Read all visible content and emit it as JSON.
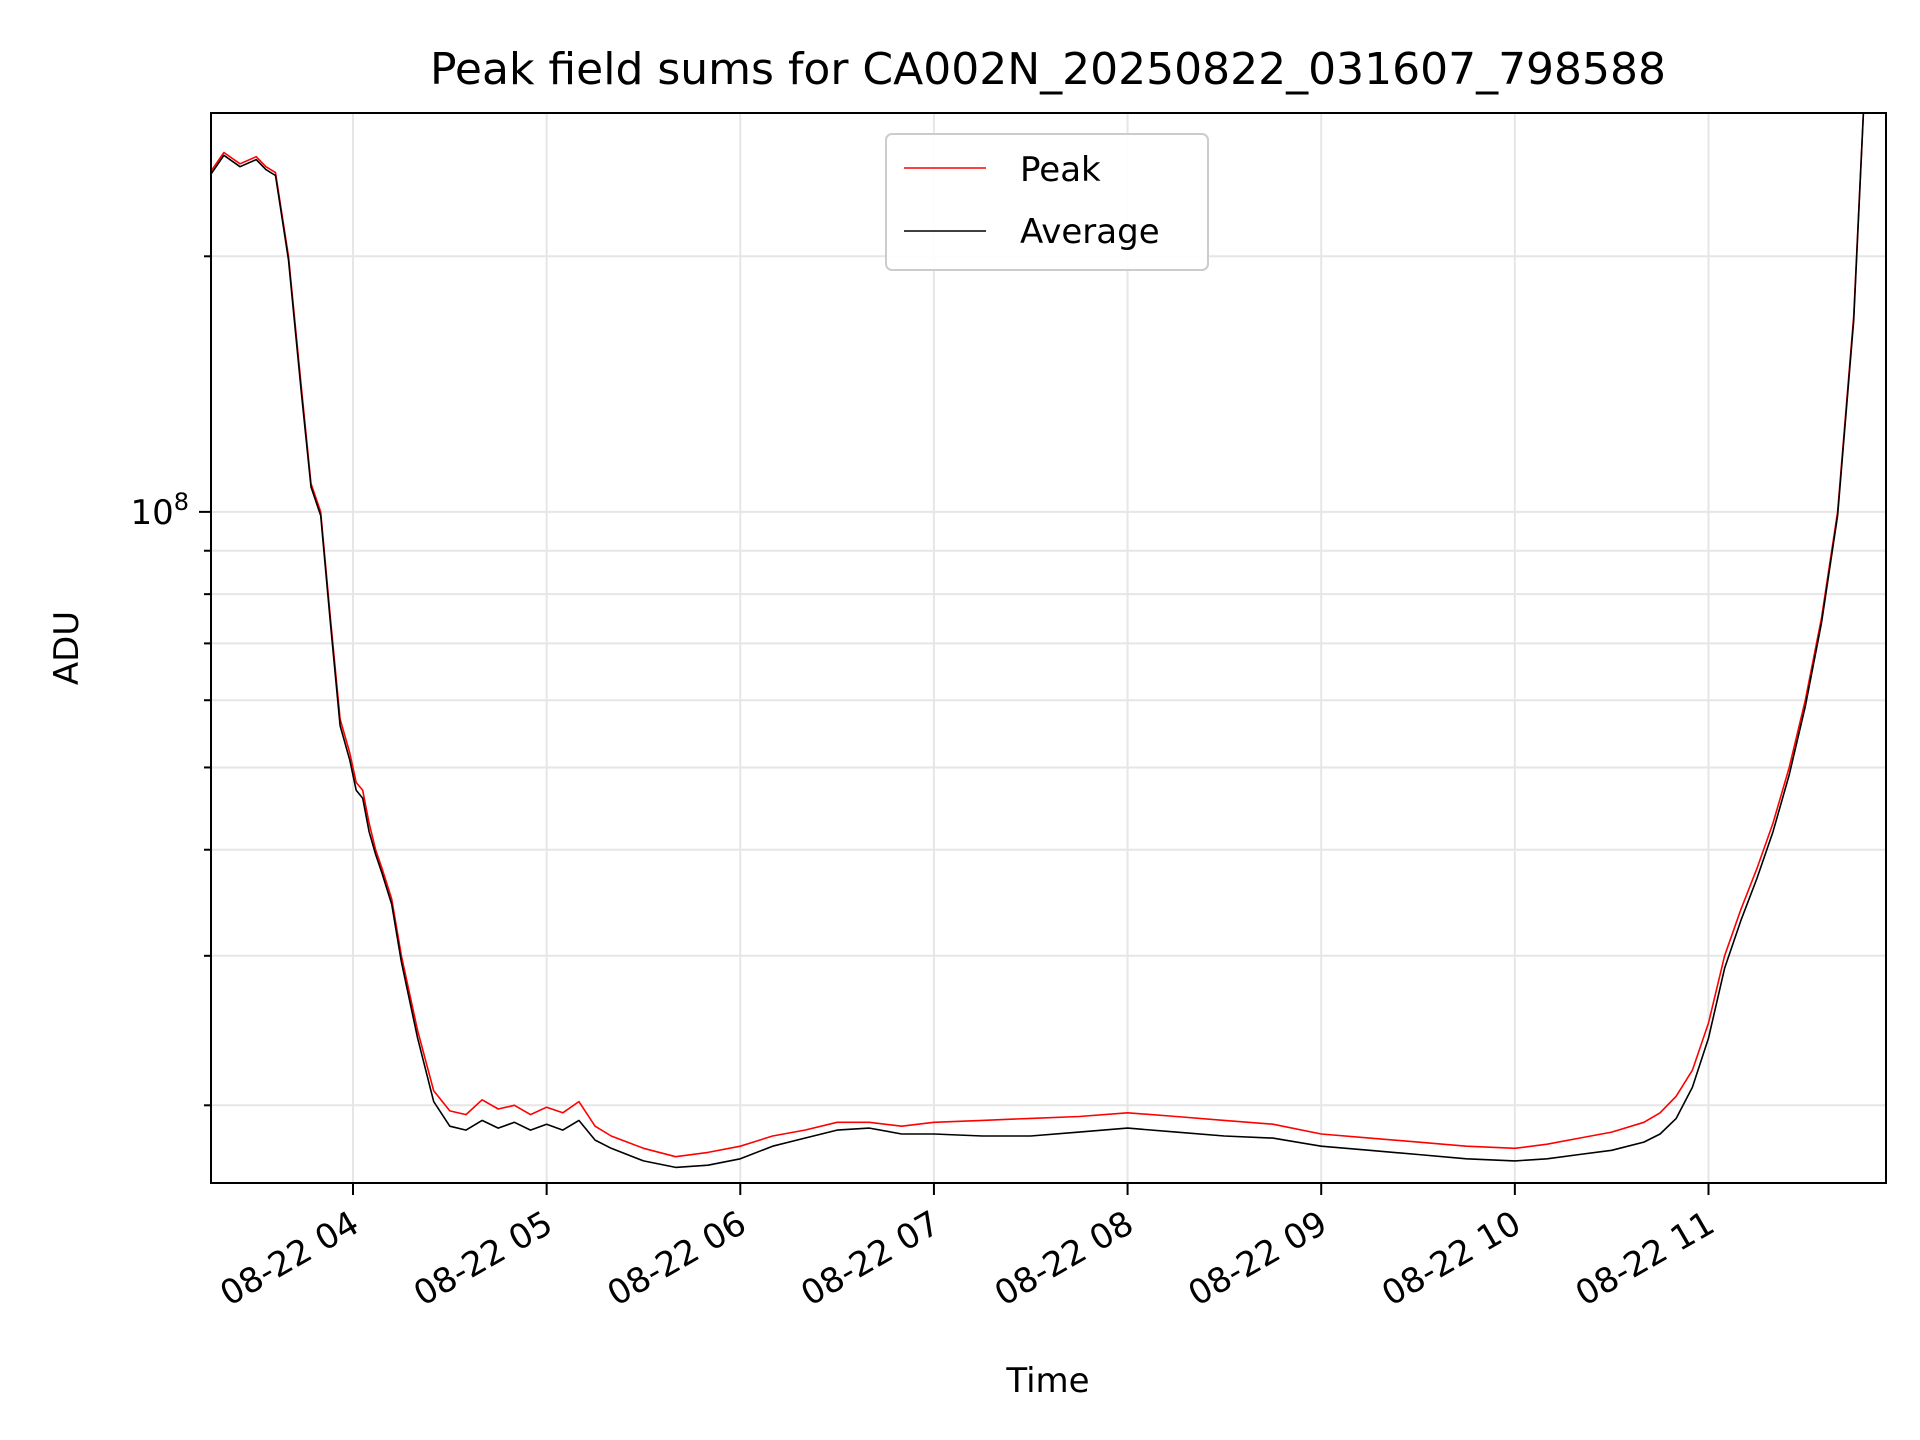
{
  "chart_data": {
    "type": "line",
    "title": "Peak field sums for CA002N_20250822_031607_798588",
    "xlabel": "Time",
    "ylabel": "ADU",
    "y_scale": "log",
    "x_range": [
      "2025-08-22 03:16",
      "2025-08-22 11:55"
    ],
    "y_range": [
      16200000,
      295000000
    ],
    "x_tick_labels": [
      "08-22 04",
      "08-22 05",
      "08-22 06",
      "08-22 07",
      "08-22 08",
      "08-22 09",
      "08-22 10",
      "08-22 11"
    ],
    "x_ticks": [
      "2025-08-22 04:00",
      "2025-08-22 05:00",
      "2025-08-22 06:00",
      "2025-08-22 07:00",
      "2025-08-22 08:00",
      "2025-08-22 09:00",
      "2025-08-22 10:00",
      "2025-08-22 11:00"
    ],
    "y_tick_label": {
      "base": "10",
      "exponent": "8"
    },
    "y_tick_value": 100000000,
    "y_minor_ticks": [
      20000000,
      30000000,
      40000000,
      50000000,
      60000000,
      70000000,
      80000000,
      90000000,
      200000000
    ],
    "grid": true,
    "legend_position": "top-center",
    "series": [
      {
        "name": "Peak",
        "color": "#ff0000",
        "x": [
          "2025-08-22 03:16",
          "2025-08-22 03:20",
          "2025-08-22 03:25",
          "2025-08-22 03:30",
          "2025-08-22 03:33",
          "2025-08-22 03:36",
          "2025-08-22 03:40",
          "2025-08-22 03:44",
          "2025-08-22 03:47",
          "2025-08-22 03:50",
          "2025-08-22 03:53",
          "2025-08-22 03:56",
          "2025-08-22 03:59",
          "2025-08-22 04:01",
          "2025-08-22 04:03",
          "2025-08-22 04:05",
          "2025-08-22 04:07",
          "2025-08-22 04:09",
          "2025-08-22 04:12",
          "2025-08-22 04:15",
          "2025-08-22 04:20",
          "2025-08-22 04:25",
          "2025-08-22 04:30",
          "2025-08-22 04:35",
          "2025-08-22 04:40",
          "2025-08-22 04:45",
          "2025-08-22 04:50",
          "2025-08-22 04:55",
          "2025-08-22 05:00",
          "2025-08-22 05:05",
          "2025-08-22 05:10",
          "2025-08-22 05:15",
          "2025-08-22 05:20",
          "2025-08-22 05:30",
          "2025-08-22 05:40",
          "2025-08-22 05:50",
          "2025-08-22 06:00",
          "2025-08-22 06:10",
          "2025-08-22 06:20",
          "2025-08-22 06:30",
          "2025-08-22 06:40",
          "2025-08-22 06:50",
          "2025-08-22 07:00",
          "2025-08-22 07:15",
          "2025-08-22 07:30",
          "2025-08-22 07:45",
          "2025-08-22 08:00",
          "2025-08-22 08:15",
          "2025-08-22 08:30",
          "2025-08-22 08:45",
          "2025-08-22 09:00",
          "2025-08-22 09:15",
          "2025-08-22 09:30",
          "2025-08-22 09:45",
          "2025-08-22 10:00",
          "2025-08-22 10:10",
          "2025-08-22 10:20",
          "2025-08-22 10:30",
          "2025-08-22 10:40",
          "2025-08-22 10:45",
          "2025-08-22 10:50",
          "2025-08-22 10:55",
          "2025-08-22 11:00",
          "2025-08-22 11:05",
          "2025-08-22 11:10",
          "2025-08-22 11:15",
          "2025-08-22 11:20",
          "2025-08-22 11:25",
          "2025-08-22 11:30",
          "2025-08-22 11:35",
          "2025-08-22 11:40",
          "2025-08-22 11:45",
          "2025-08-22 11:48"
        ],
        "values": [
          252000000,
          265000000,
          257000000,
          262000000,
          255000000,
          251000000,
          200000000,
          140000000,
          108000000,
          100000000,
          75000000,
          57000000,
          52000000,
          48000000,
          47000000,
          43000000,
          40000000,
          38000000,
          35000000,
          30000000,
          24500000,
          20800000,
          19700000,
          19500000,
          20300000,
          19800000,
          20000000,
          19500000,
          19900000,
          19600000,
          20200000,
          18900000,
          18400000,
          17800000,
          17400000,
          17600000,
          17900000,
          18400000,
          18700000,
          19100000,
          19100000,
          18900000,
          19100000,
          19200000,
          19300000,
          19400000,
          19600000,
          19400000,
          19200000,
          19000000,
          18500000,
          18300000,
          18100000,
          17900000,
          17800000,
          18000000,
          18300000,
          18600000,
          19100000,
          19600000,
          20500000,
          22000000,
          25000000,
          30000000,
          34000000,
          38000000,
          43000000,
          50000000,
          60000000,
          75000000,
          100000000,
          170000000,
          295000000
        ]
      },
      {
        "name": "Average",
        "color": "#000000",
        "x": [
          "2025-08-22 03:16",
          "2025-08-22 03:20",
          "2025-08-22 03:25",
          "2025-08-22 03:30",
          "2025-08-22 03:33",
          "2025-08-22 03:36",
          "2025-08-22 03:40",
          "2025-08-22 03:44",
          "2025-08-22 03:47",
          "2025-08-22 03:50",
          "2025-08-22 03:53",
          "2025-08-22 03:56",
          "2025-08-22 03:59",
          "2025-08-22 04:01",
          "2025-08-22 04:03",
          "2025-08-22 04:05",
          "2025-08-22 04:07",
          "2025-08-22 04:09",
          "2025-08-22 04:12",
          "2025-08-22 04:15",
          "2025-08-22 04:20",
          "2025-08-22 04:25",
          "2025-08-22 04:30",
          "2025-08-22 04:35",
          "2025-08-22 04:40",
          "2025-08-22 04:45",
          "2025-08-22 04:50",
          "2025-08-22 04:55",
          "2025-08-22 05:00",
          "2025-08-22 05:05",
          "2025-08-22 05:10",
          "2025-08-22 05:15",
          "2025-08-22 05:20",
          "2025-08-22 05:30",
          "2025-08-22 05:40",
          "2025-08-22 05:50",
          "2025-08-22 06:00",
          "2025-08-22 06:10",
          "2025-08-22 06:20",
          "2025-08-22 06:30",
          "2025-08-22 06:40",
          "2025-08-22 06:50",
          "2025-08-22 07:00",
          "2025-08-22 07:15",
          "2025-08-22 07:30",
          "2025-08-22 07:45",
          "2025-08-22 08:00",
          "2025-08-22 08:15",
          "2025-08-22 08:30",
          "2025-08-22 08:45",
          "2025-08-22 09:00",
          "2025-08-22 09:15",
          "2025-08-22 09:30",
          "2025-08-22 09:45",
          "2025-08-22 10:00",
          "2025-08-22 10:10",
          "2025-08-22 10:20",
          "2025-08-22 10:30",
          "2025-08-22 10:40",
          "2025-08-22 10:45",
          "2025-08-22 10:50",
          "2025-08-22 10:55",
          "2025-08-22 11:00",
          "2025-08-22 11:05",
          "2025-08-22 11:10",
          "2025-08-22 11:15",
          "2025-08-22 11:20",
          "2025-08-22 11:25",
          "2025-08-22 11:30",
          "2025-08-22 11:35",
          "2025-08-22 11:40",
          "2025-08-22 11:45",
          "2025-08-22 11:48"
        ],
        "values": [
          250000000,
          263000000,
          255000000,
          260000000,
          253000000,
          249000000,
          198000000,
          138000000,
          107000000,
          99000000,
          74000000,
          56000000,
          51000000,
          47000000,
          46000000,
          42000000,
          39500000,
          37500000,
          34500000,
          29500000,
          24000000,
          20200000,
          18900000,
          18700000,
          19200000,
          18800000,
          19100000,
          18700000,
          19000000,
          18700000,
          19200000,
          18200000,
          17800000,
          17200000,
          16900000,
          17000000,
          17300000,
          17900000,
          18300000,
          18700000,
          18800000,
          18500000,
          18500000,
          18400000,
          18400000,
          18600000,
          18800000,
          18600000,
          18400000,
          18300000,
          17900000,
          17700000,
          17500000,
          17300000,
          17200000,
          17300000,
          17500000,
          17700000,
          18100000,
          18500000,
          19300000,
          21000000,
          24000000,
          29000000,
          33000000,
          37000000,
          42000000,
          49000000,
          59000000,
          74000000,
          99000000,
          168000000,
          295000000
        ]
      }
    ]
  }
}
